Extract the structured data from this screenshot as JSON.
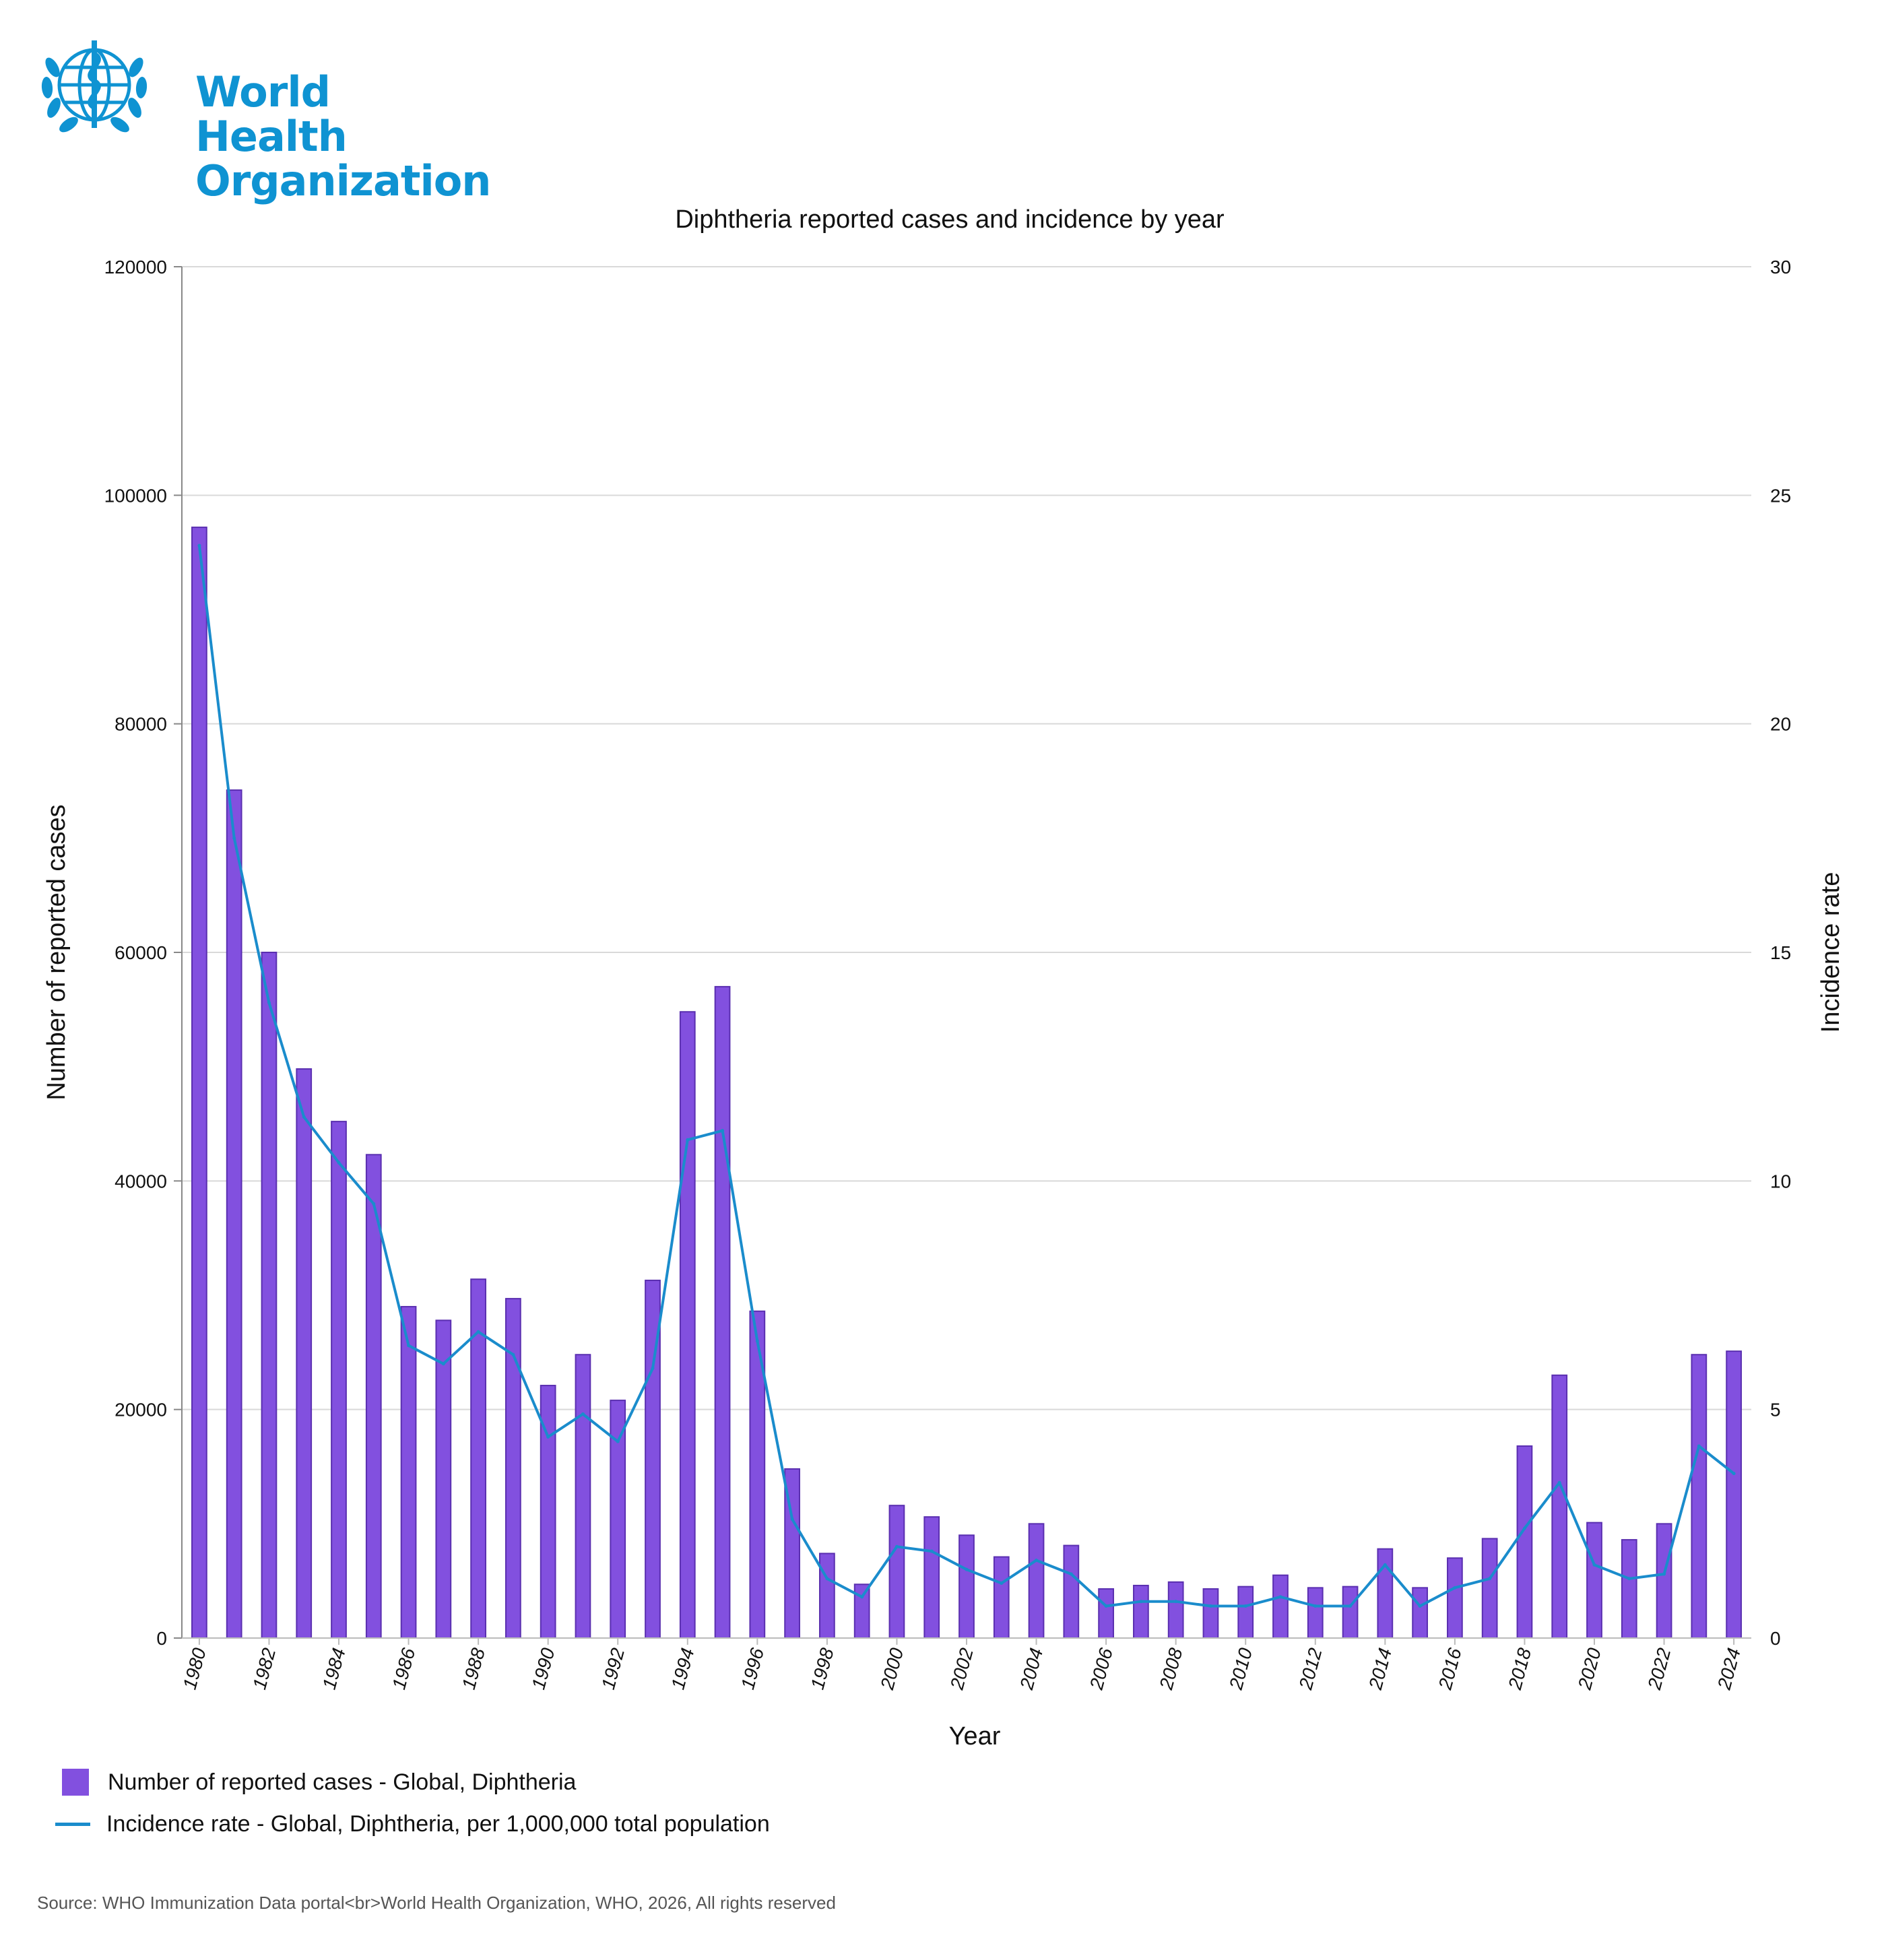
{
  "logo": {
    "title": "World Health Organization",
    "line1": "World Health",
    "line2": "Organization",
    "icon": "who-emblem-icon"
  },
  "colors": {
    "bars": "#8250df",
    "bar_border": "#5a2fb0",
    "line": "#1a8ccc",
    "brand": "#0f93d2",
    "grid": "#d9d9d9"
  },
  "chart_data": {
    "type": "bar+line",
    "title": "Diphtheria reported cases and incidence by year",
    "xlabel": "Year",
    "ylabel": "Number of reported cases",
    "y2label": "Incidence rate",
    "ylim": [
      0,
      120000
    ],
    "y2lim": [
      0,
      30
    ],
    "yticks": [
      0,
      20000,
      40000,
      60000,
      80000,
      100000,
      120000
    ],
    "y2ticks": [
      0,
      5,
      10,
      15,
      20,
      25,
      30
    ],
    "grid": true,
    "categories": [
      1980,
      1981,
      1982,
      1983,
      1984,
      1985,
      1986,
      1987,
      1988,
      1989,
      1990,
      1991,
      1992,
      1993,
      1994,
      1995,
      1996,
      1997,
      1998,
      1999,
      2000,
      2001,
      2002,
      2003,
      2004,
      2005,
      2006,
      2007,
      2008,
      2009,
      2010,
      2011,
      2012,
      2013,
      2014,
      2015,
      2016,
      2017,
      2018,
      2019,
      2020,
      2021,
      2022,
      2023,
      2024
    ],
    "xtick_labels": [
      "1980",
      "1982",
      "1984",
      "1986",
      "1988",
      "1990",
      "1992",
      "1994",
      "1996",
      "1998",
      "2000",
      "2002",
      "2004",
      "2006",
      "2008",
      "2010",
      "2012",
      "2014",
      "2016",
      "2018",
      "2020",
      "2022",
      "2024"
    ],
    "series": [
      {
        "name": "Number of reported cases - Global, Diphtheria",
        "type": "bar",
        "axis": "left",
        "values": [
          97200,
          74200,
          60000,
          49800,
          45200,
          42300,
          29000,
          27800,
          31400,
          29700,
          22100,
          24800,
          20800,
          31300,
          54800,
          57000,
          28600,
          14800,
          7400,
          4700,
          11600,
          10600,
          9000,
          7100,
          10000,
          8100,
          4300,
          4600,
          4900,
          4300,
          4500,
          5500,
          4400,
          4500,
          7800,
          4400,
          7000,
          8700,
          16800,
          23000,
          10100,
          8600,
          10000,
          24800,
          25100
        ]
      },
      {
        "name": "Incidence rate - Global, Diphtheria, per 1,000,000 total population",
        "type": "line",
        "axis": "right",
        "values": [
          23.9,
          17.5,
          13.9,
          11.4,
          10.4,
          9.5,
          6.4,
          6.0,
          6.7,
          6.2,
          4.4,
          4.9,
          4.3,
          5.9,
          10.9,
          11.1,
          6.5,
          2.6,
          1.3,
          0.9,
          2.0,
          1.9,
          1.5,
          1.2,
          1.7,
          1.4,
          0.7,
          0.8,
          0.8,
          0.7,
          0.7,
          0.9,
          0.7,
          0.7,
          1.6,
          0.7,
          1.1,
          1.3,
          2.4,
          3.4,
          1.6,
          1.3,
          1.4,
          4.2,
          3.6
        ]
      }
    ]
  },
  "legend": {
    "bars_label": "Number of reported cases - Global, Diphtheria",
    "line_label": "Incidence rate - Global, Diphtheria, per 1,000,000 total population"
  },
  "source": "Source: WHO Immunization Data portal<br>World Health Organization, WHO, 2026, All rights reserved"
}
